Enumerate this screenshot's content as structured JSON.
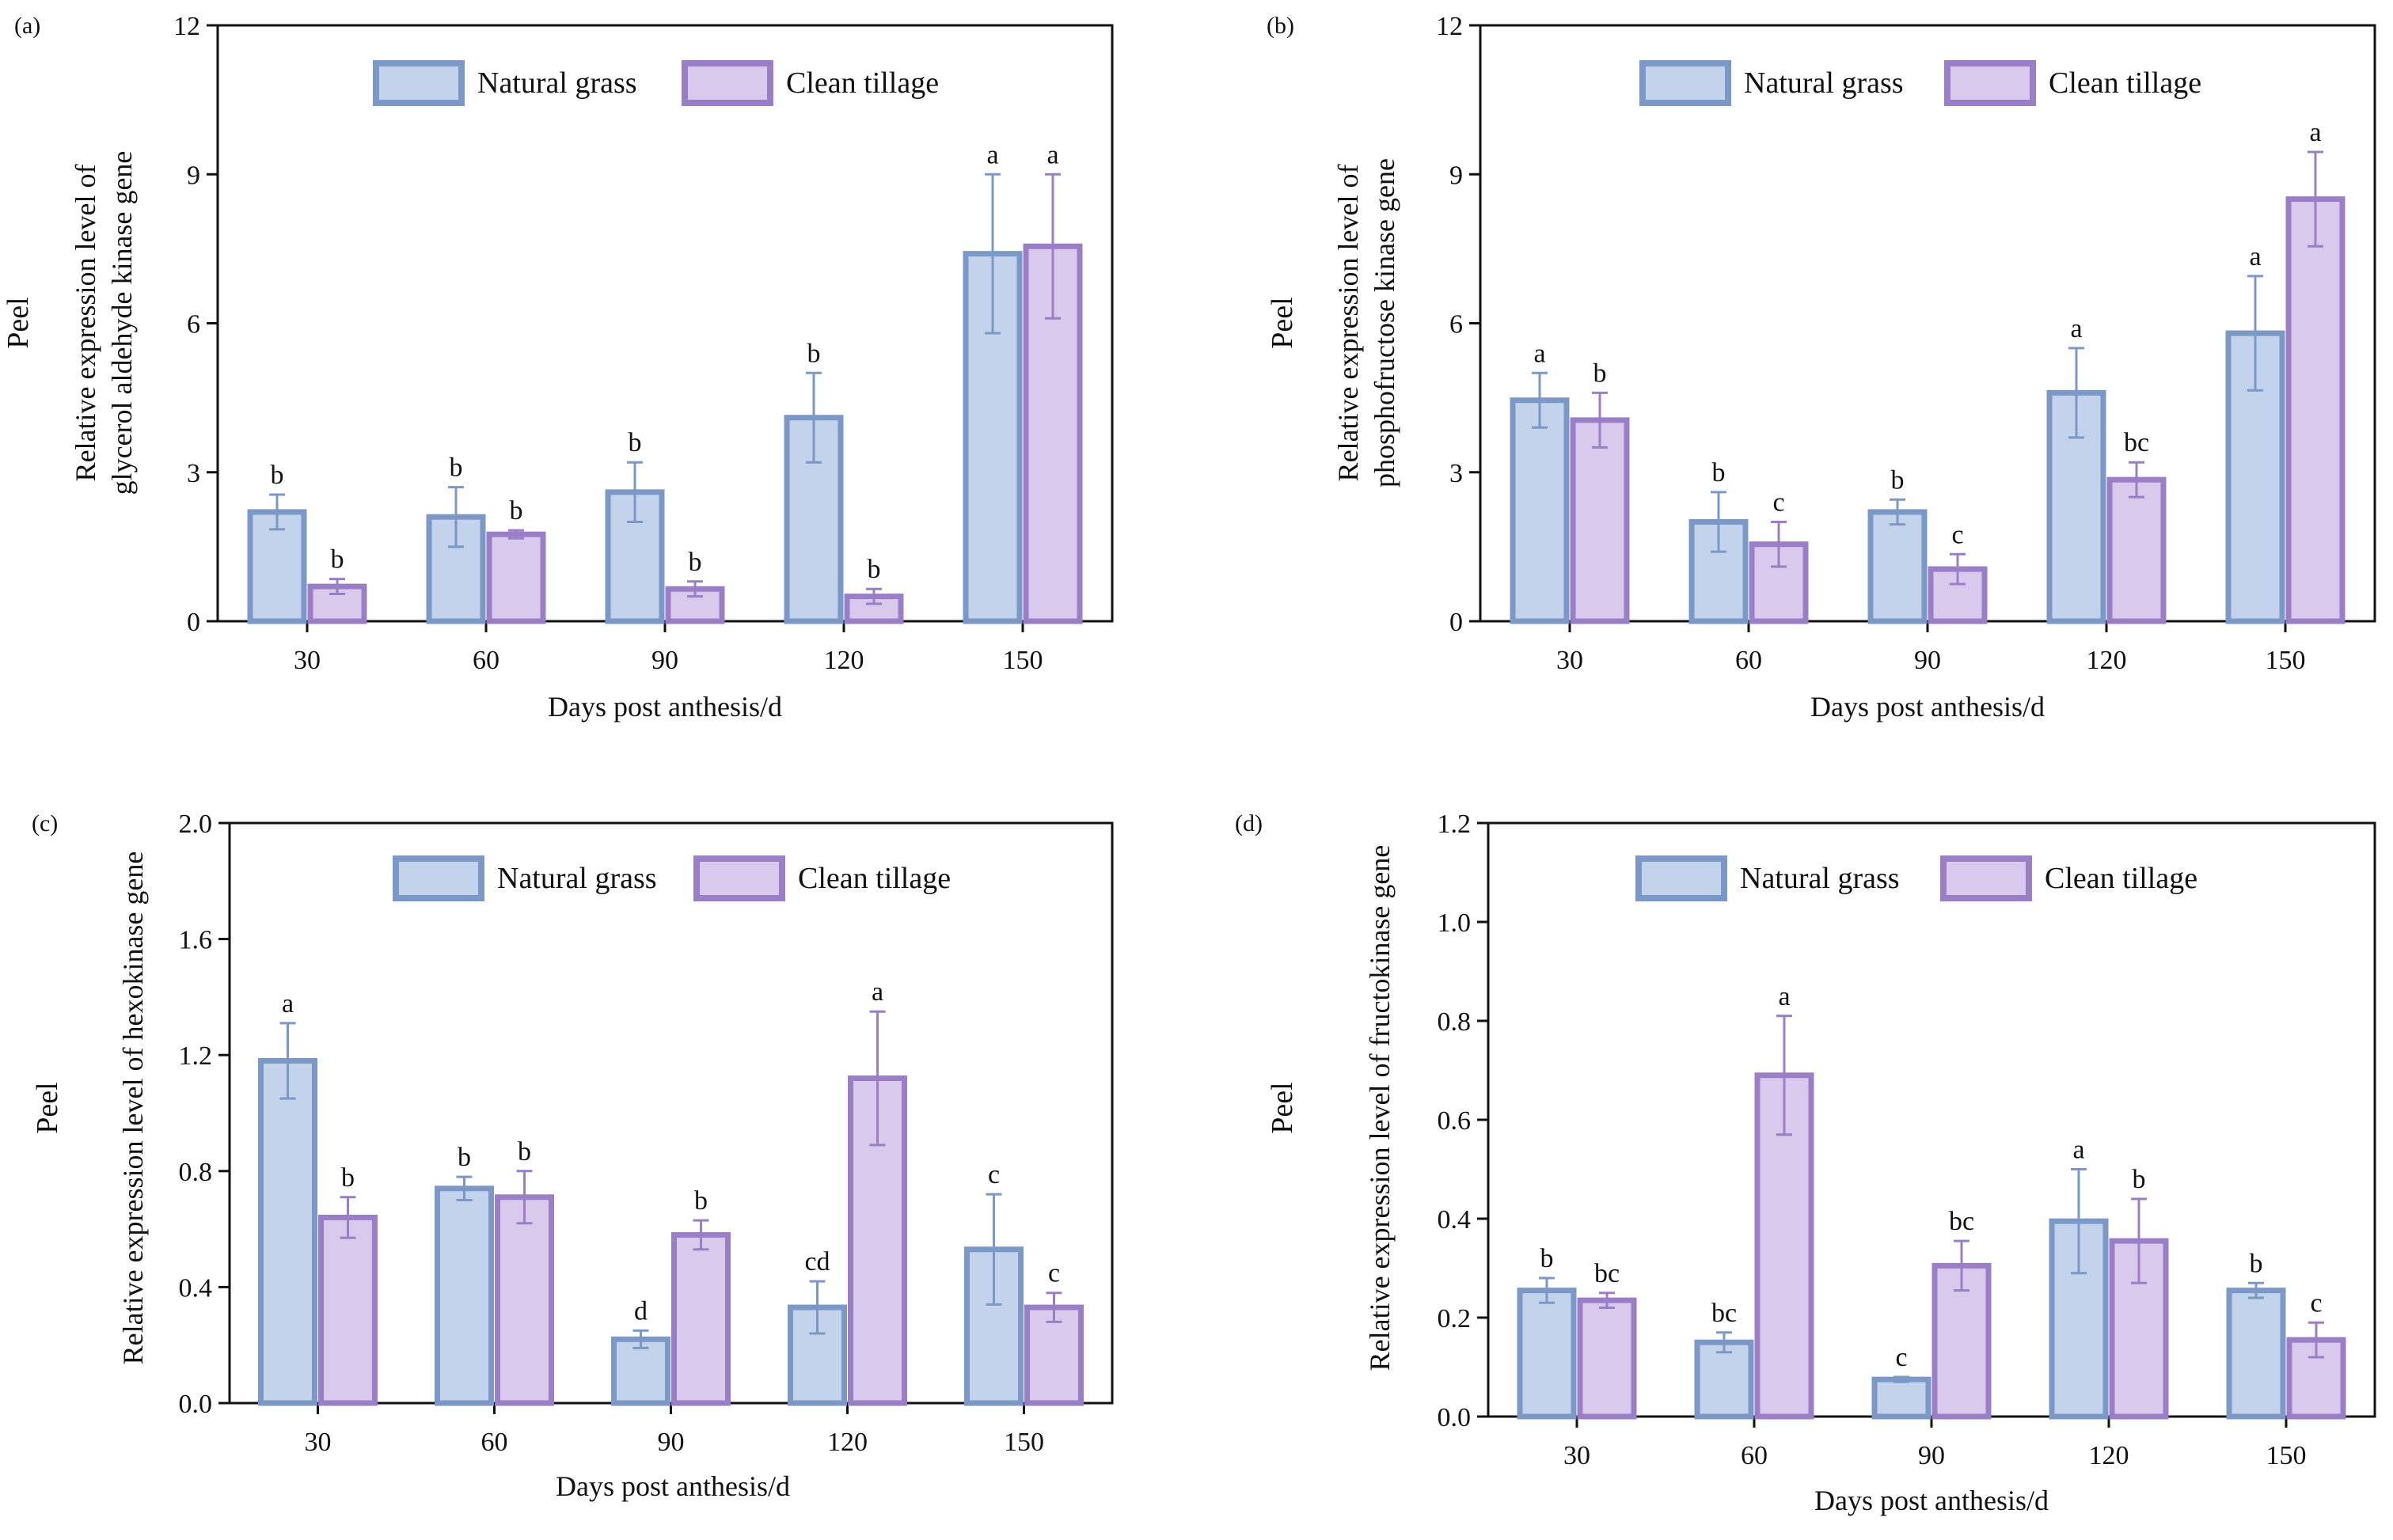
{
  "chart_data": [
    {
      "type": "bar",
      "panel_label": "(a)",
      "side_label": "Peel",
      "ylabel_lines": [
        "Relative expression level of",
        "glycerol aldehyde kinase gene"
      ],
      "xlabel": "Days post anthesis/d",
      "categories": [
        "30",
        "60",
        "90",
        "120",
        "150"
      ],
      "ylim": [
        0,
        12
      ],
      "yticks": [
        "0",
        "3",
        "6",
        "9",
        "12"
      ],
      "tick_values": [
        0,
        3,
        6,
        9,
        12
      ],
      "legend": [
        "Natural grass",
        "Clean tillage"
      ],
      "series": [
        {
          "name": "Natural grass",
          "values": [
            2.2,
            2.1,
            2.6,
            4.1,
            7.4
          ],
          "errors": [
            0.35,
            0.6,
            0.6,
            0.9,
            1.6
          ],
          "letters": [
            "b",
            "b",
            "b",
            "b",
            "a"
          ]
        },
        {
          "name": "Clean tillage",
          "values": [
            0.7,
            1.75,
            0.65,
            0.5,
            7.55
          ],
          "errors": [
            0.15,
            0.08,
            0.15,
            0.15,
            1.45
          ],
          "letters": [
            "b",
            "b",
            "b",
            "b",
            "a"
          ]
        }
      ]
    },
    {
      "type": "bar",
      "panel_label": "(b)",
      "side_label": "Peel",
      "ylabel_lines": [
        "Relative expression level of",
        "phosphofructose kinase gene"
      ],
      "xlabel": "Days post anthesis/d",
      "categories": [
        "30",
        "60",
        "90",
        "120",
        "150"
      ],
      "ylim": [
        0,
        12
      ],
      "yticks": [
        "0",
        "3",
        "6",
        "9",
        "12"
      ],
      "tick_values": [
        0,
        3,
        6,
        9,
        12
      ],
      "legend": [
        "Natural grass",
        "Clean tillage"
      ],
      "series": [
        {
          "name": "Natural grass",
          "values": [
            4.45,
            2.0,
            2.2,
            4.6,
            5.8
          ],
          "errors": [
            0.55,
            0.6,
            0.25,
            0.9,
            1.15
          ],
          "letters": [
            "a",
            "b",
            "b",
            "a",
            "a"
          ]
        },
        {
          "name": "Clean tillage",
          "values": [
            4.05,
            1.55,
            1.05,
            2.85,
            8.5
          ],
          "errors": [
            0.55,
            0.45,
            0.3,
            0.35,
            0.95
          ],
          "letters": [
            "b",
            "c",
            "c",
            "bc",
            "a"
          ]
        }
      ]
    },
    {
      "type": "bar",
      "panel_label": "(c)",
      "side_label": "Peel",
      "ylabel_lines": [
        "Relative expression level of hexokinase gene"
      ],
      "xlabel": "Days post anthesis/d",
      "categories": [
        "30",
        "60",
        "90",
        "120",
        "150"
      ],
      "ylim": [
        0,
        2.0
      ],
      "yticks": [
        "0.0",
        "0.4",
        "0.8",
        "1.2",
        "1.6",
        "2.0"
      ],
      "tick_values": [
        0,
        0.4,
        0.8,
        1.2,
        1.6,
        2.0
      ],
      "legend": [
        "Natural grass",
        "Clean tillage"
      ],
      "series": [
        {
          "name": "Natural grass",
          "values": [
            1.18,
            0.74,
            0.22,
            0.33,
            0.53
          ],
          "errors": [
            0.13,
            0.04,
            0.03,
            0.09,
            0.19
          ],
          "letters": [
            "a",
            "b",
            "d",
            "cd",
            "c"
          ]
        },
        {
          "name": "Clean tillage",
          "values": [
            0.64,
            0.71,
            0.58,
            1.12,
            0.33
          ],
          "errors": [
            0.07,
            0.09,
            0.05,
            0.23,
            0.05
          ],
          "letters": [
            "b",
            "b",
            "b",
            "a",
            "c"
          ]
        }
      ]
    },
    {
      "type": "bar",
      "panel_label": "(d)",
      "side_label": "Peel",
      "ylabel_lines": [
        "Relative expression level of fructokinase gene"
      ],
      "xlabel": "Days post anthesis/d",
      "categories": [
        "30",
        "60",
        "90",
        "120",
        "150"
      ],
      "ylim": [
        0,
        1.2
      ],
      "yticks": [
        "0.0",
        "0.2",
        "0.4",
        "0.6",
        "0.8",
        "1.0",
        "1.2"
      ],
      "tick_values": [
        0,
        0.2,
        0.4,
        0.6,
        0.8,
        1.0,
        1.2
      ],
      "legend": [
        "Natural grass",
        "Clean tillage"
      ],
      "series": [
        {
          "name": "Natural grass",
          "values": [
            0.255,
            0.15,
            0.075,
            0.395,
            0.255
          ],
          "errors": [
            0.025,
            0.02,
            0.005,
            0.105,
            0.015
          ],
          "letters": [
            "b",
            "bc",
            "c",
            "a",
            "b"
          ]
        },
        {
          "name": "Clean tillage",
          "values": [
            0.235,
            0.69,
            0.305,
            0.355,
            0.155
          ],
          "errors": [
            0.015,
            0.12,
            0.05,
            0.085,
            0.035
          ],
          "letters": [
            "bc",
            "a",
            "bc",
            "b",
            "c"
          ]
        }
      ]
    }
  ],
  "colors": {
    "natural_fill": "#c3d3ec",
    "natural_edge": "#7b98c6",
    "clean_fill": "#d9c9ec",
    "clean_edge": "#9b7fc6",
    "axis": "#111111"
  }
}
